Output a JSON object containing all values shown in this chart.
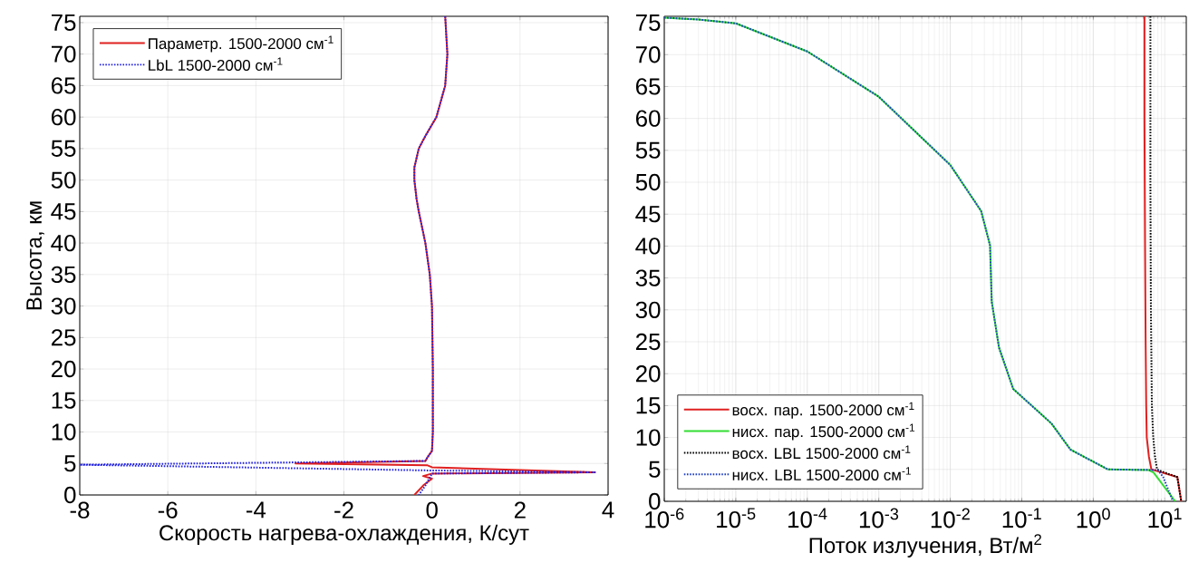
{
  "chart_data": [
    {
      "type": "line",
      "xlabel": "Скорость нагрева-охлаждения, К/сут",
      "ylabel": "Высота,  км",
      "xlim": [
        -8,
        4
      ],
      "xticks": [
        -8,
        -6,
        -4,
        -2,
        0,
        2,
        4
      ],
      "ylim": [
        0,
        76
      ],
      "yticks": [
        0,
        5,
        10,
        15,
        20,
        25,
        30,
        35,
        40,
        45,
        50,
        55,
        60,
        65,
        70,
        75
      ],
      "grid": true,
      "legend": "top left",
      "marker": "none",
      "series": [
        {
          "name": "Параметр. 1500-2000 см$^{-1}$",
          "color": "#e02020",
          "line_style": "solid",
          "x": [
            0.3,
            0.35,
            0.3,
            0.1,
            -0.15,
            -0.3,
            -0.4,
            -0.4,
            -0.35,
            -0.3,
            -0.15,
            -0.05,
            0,
            0.02,
            0.02,
            0,
            -0.1,
            -0.15,
            -3.1,
            -0.1,
            0,
            3.7,
            0,
            -0.2,
            0,
            -0.2,
            -0.4
          ],
          "values": [
            76,
            70,
            65,
            60,
            57,
            55,
            52,
            50,
            47,
            45,
            40,
            35,
            30,
            20,
            10,
            7,
            6,
            5.4,
            5.0,
            4.7,
            4.4,
            3.6,
            3.4,
            3.0,
            2.6,
            1.5,
            0
          ]
        },
        {
          "name": "LbL 1500-2000 см$^{-1}$",
          "color": "#2020e0",
          "line_style": "dotted",
          "x": [
            0.3,
            0.35,
            0.3,
            0.1,
            -0.15,
            -0.3,
            -0.4,
            -0.4,
            -0.35,
            -0.3,
            -0.15,
            -0.05,
            0,
            0.02,
            0.02,
            0,
            -0.1,
            -0.15,
            -8,
            -0.1,
            3.7,
            0,
            -0.15,
            -0.3
          ],
          "values": [
            76,
            70,
            65,
            60,
            57,
            55,
            52,
            50,
            47,
            45,
            40,
            35,
            30,
            20,
            10,
            7,
            6,
            5.4,
            4.8,
            3.9,
            3.6,
            3.4,
            1.5,
            0
          ]
        }
      ]
    },
    {
      "type": "line",
      "xlabel": "Поток излучения, Вт/м$^{2}$",
      "log": "x",
      "xlim": [
        1e-06,
        20
      ],
      "xticks": [
        {
          "value": 1e-06,
          "label": "10$^{-6}$"
        },
        {
          "value": 1e-05,
          "label": "10$^{-5}$"
        },
        {
          "value": 0.0001,
          "label": "10$^{-4}$"
        },
        {
          "value": 0.001,
          "label": "10$^{-3}$"
        },
        {
          "value": 0.01,
          "label": "10$^{-2}$"
        },
        {
          "value": 0.1,
          "label": "10$^{-1}$"
        },
        {
          "value": 1,
          "label": "10$^{0}$"
        },
        {
          "value": 10,
          "label": "10$^{1}$"
        }
      ],
      "ylim": [
        0,
        76
      ],
      "yticks": [
        0,
        5,
        10,
        15,
        20,
        25,
        30,
        35,
        40,
        45,
        50,
        55,
        60,
        65,
        70,
        75
      ],
      "grid": true,
      "legend": "bottom left",
      "marker": "none",
      "series": [
        {
          "name": "восх. пар. 1500-2000 см$^{-1}$",
          "color": "#e02020",
          "line_style": "solid",
          "x": [
            5.2,
            5.2,
            5.3,
            5.4,
            5.5,
            5.6,
            6.0,
            6.5,
            8,
            15,
            17
          ],
          "values": [
            76,
            60,
            40,
            25,
            15,
            10,
            7,
            5,
            4.7,
            3.8,
            0
          ]
        },
        {
          "name": "нисх. пар. 1500-2000 см$^{-1}$",
          "color": "#33dd33",
          "line_style": "solid",
          "x": [
            1e-06,
            3e-06,
            1e-05,
            0.0001,
            0.001,
            0.01,
            0.027,
            0.036,
            0.038,
            0.048,
            0.076,
            0.26,
            0.48,
            1.6,
            6,
            7,
            14
          ],
          "values": [
            75.8,
            75.5,
            74.9,
            70.5,
            63.4,
            52.7,
            45.5,
            40.1,
            31.3,
            24.1,
            17.6,
            12.2,
            8.1,
            5.0,
            4.9,
            4.5,
            0
          ]
        },
        {
          "name": "восх. LBL 1500-2000 см$^{-1}$",
          "color": "#000000",
          "line_style": "dotted",
          "x": [
            6.3,
            6.3,
            6.4,
            6.6,
            6.9,
            7.3,
            7.8,
            9,
            15,
            17
          ],
          "values": [
            76,
            50,
            30,
            15,
            10,
            7,
            5,
            4.7,
            3.8,
            0
          ]
        },
        {
          "name": "нисх. LBL 1500-2000 см$^{-1}$",
          "color": "#2040c0",
          "line_style": "dotted",
          "x": [
            1e-06,
            3e-06,
            1e-05,
            0.0001,
            0.001,
            0.01,
            0.027,
            0.036,
            0.038,
            0.048,
            0.076,
            0.26,
            0.48,
            1.6,
            8,
            9.5,
            13
          ],
          "values": [
            75.8,
            75.5,
            74.9,
            70.5,
            63.4,
            52.7,
            45.5,
            40.1,
            31.3,
            24.1,
            17.6,
            12.2,
            8.1,
            5.0,
            4.9,
            3.8,
            0
          ]
        }
      ]
    }
  ]
}
